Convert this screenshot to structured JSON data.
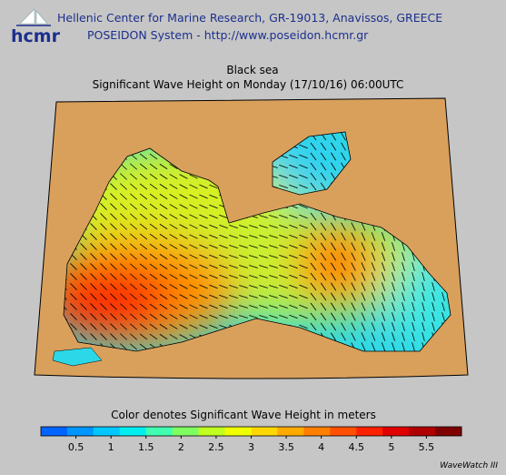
{
  "header": {
    "logo": "hcmr",
    "line1": "Hellenic Center for Marine Research, GR-19013, Anavissos, GREECE",
    "line2": "POSEIDON System - http://www.poseidon.hcmr.gr"
  },
  "title": {
    "region": "Black sea",
    "subtitle": "Significant Wave Height on Monday (17/10/16) 06:00UTC"
  },
  "colorbar": {
    "label": "Color denotes Significant Wave Height in meters",
    "range": [
      0,
      6
    ],
    "ticks": [
      0.5,
      1,
      1.5,
      2,
      2.5,
      3,
      3.5,
      4,
      4.5,
      5,
      5.5
    ],
    "colors": [
      "#0064ff",
      "#0096ff",
      "#00c8ff",
      "#00eef0",
      "#40ffb0",
      "#80ff60",
      "#c0ff20",
      "#f0ff00",
      "#ffd700",
      "#ffaa00",
      "#ff8000",
      "#ff5000",
      "#ff2000",
      "#e00000",
      "#b00000",
      "#800000"
    ]
  },
  "footer": {
    "model": "WaveWatch III"
  }
}
